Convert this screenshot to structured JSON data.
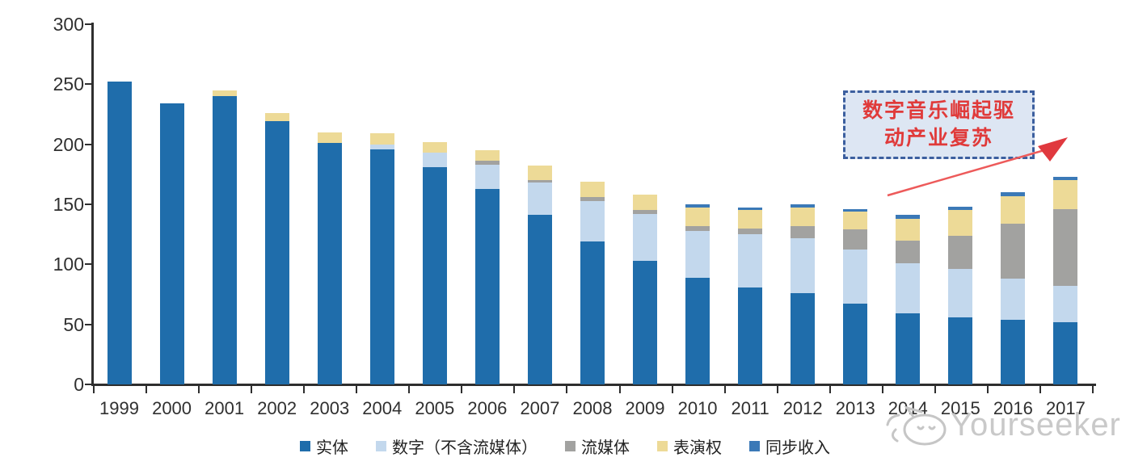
{
  "chart_data": {
    "type": "bar",
    "stacked": true,
    "title": "",
    "xlabel": "",
    "ylabel": "",
    "ylim": [
      0,
      300
    ],
    "yticks": [
      0,
      50,
      100,
      150,
      200,
      250,
      300
    ],
    "grid": false,
    "legend_position": "bottom",
    "categories": [
      "1999",
      "2000",
      "2001",
      "2002",
      "2003",
      "2004",
      "2005",
      "2006",
      "2007",
      "2008",
      "2009",
      "2010",
      "2011",
      "2012",
      "2013",
      "2014",
      "2015",
      "2016",
      "2017"
    ],
    "series": [
      {
        "name": "实体",
        "color": "#1f6dab",
        "values": [
          252,
          234,
          240,
          219,
          201,
          196,
          181,
          163,
          141,
          119,
          103,
          89,
          81,
          76,
          67,
          59,
          56,
          54,
          52
        ]
      },
      {
        "name": "数字（不含流媒体）",
        "color": "#c3d8ed",
        "values": [
          0,
          0,
          0,
          0,
          0,
          4,
          12,
          20,
          27,
          34,
          39,
          39,
          44,
          46,
          45,
          42,
          40,
          34,
          30
        ]
      },
      {
        "name": "流媒体",
        "color": "#a2a2a0",
        "values": [
          0,
          0,
          0,
          0,
          0,
          0,
          0,
          3,
          2,
          3,
          3,
          4,
          5,
          10,
          17,
          19,
          28,
          46,
          64
        ]
      },
      {
        "name": "表演权",
        "color": "#eddA97",
        "values": [
          0,
          0,
          5,
          7,
          9,
          9,
          9,
          9,
          12,
          13,
          13,
          15,
          15,
          15,
          15,
          18,
          21,
          23,
          24
        ]
      },
      {
        "name": "同步收入",
        "color": "#3b79b7",
        "values": [
          0,
          0,
          0,
          0,
          0,
          0,
          0,
          0,
          0,
          0,
          0,
          3,
          2,
          3,
          2,
          3,
          3,
          3,
          3
        ]
      }
    ],
    "annotation": "数字音乐崛起驱动产业复苏"
  },
  "annotation": {
    "line1": "数字音乐崛起驱",
    "line2": "动产业复苏"
  },
  "watermark": {
    "text": "Yourseeker"
  },
  "colors": {
    "axis": "#2e2e2e",
    "annotation_border": "#3c5f9f",
    "annotation_fill": "#dde6f3",
    "annotation_text": "#e03a3a",
    "arrow": "#e0393e",
    "watermark": "#c9c9c9"
  }
}
